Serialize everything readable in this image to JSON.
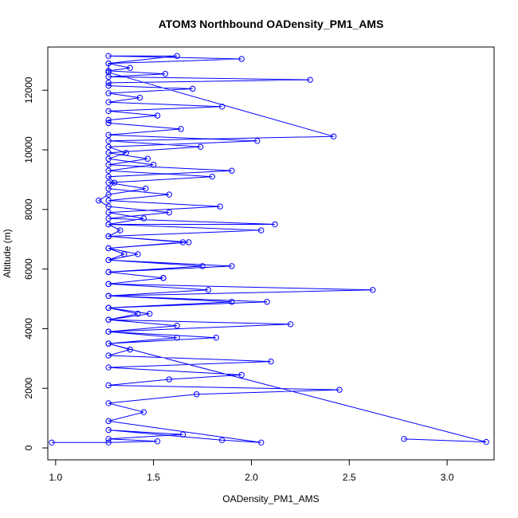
{
  "chart_data": {
    "type": "scatter",
    "title": "ATOM3 Northbound OADensity_PM1_AMS",
    "xlabel": "OADensity_PM1_AMS",
    "ylabel": "Altitude (m)",
    "xlim": [
      0.96,
      3.24
    ],
    "ylim": [
      -400,
      13450
    ],
    "xticks": [
      1.0,
      1.5,
      2.0,
      2.5,
      3.0
    ],
    "xtick_labels": [
      "1.0",
      "1.5",
      "2.0",
      "2.5",
      "3.0"
    ],
    "yticks": [
      0,
      2000,
      4000,
      6000,
      8000,
      10000,
      12000
    ],
    "ytick_labels": [
      "0",
      "2000",
      "4000",
      "6000",
      "8000",
      "10000",
      "12000"
    ],
    "grid": false,
    "marker": "open-circle",
    "line": true,
    "color": "#0000ff",
    "series": [
      {
        "x": [
          0.98,
          1.27,
          1.52,
          1.27,
          1.65,
          1.27,
          1.85,
          2.05,
          1.27,
          1.45,
          1.27,
          1.72,
          2.45,
          1.27,
          1.58,
          1.95,
          1.27,
          2.1,
          1.27,
          1.38,
          1.27,
          1.62,
          1.27,
          2.2,
          1.27,
          1.48,
          1.27,
          1.9,
          1.27,
          2.62,
          1.27,
          1.55,
          1.27,
          1.75,
          1.27,
          1.42,
          1.27,
          1.68,
          1.27,
          1.33,
          1.27,
          2.12,
          1.27,
          1.58,
          1.27,
          1.22,
          1.27,
          1.46,
          1.27,
          1.8,
          1.27,
          1.5,
          1.27,
          1.36,
          1.27,
          2.03,
          1.27,
          1.64,
          1.27,
          1.27,
          1.52,
          1.27,
          1.85,
          1.27,
          1.43,
          1.27,
          1.7,
          1.27,
          1.27,
          2.3,
          1.27,
          1.56,
          1.27,
          1.38,
          1.27,
          1.95,
          1.27,
          1.62,
          1.27,
          1.27,
          2.42,
          1.27,
          1.74,
          1.27,
          1.47,
          1.27,
          1.9,
          1.27,
          1.3,
          1.27,
          1.58,
          1.27,
          1.84,
          1.27,
          1.45,
          1.27,
          2.05,
          1.27,
          1.65,
          1.27,
          1.35,
          1.27,
          1.9,
          1.27,
          1.55,
          1.27,
          1.78,
          1.27,
          2.08,
          1.27,
          1.42,
          1.27,
          1.62,
          1.27,
          1.82,
          1.27,
          3.2,
          2.78
        ],
        "y": [
          180,
          180,
          220,
          300,
          450,
          600,
          260,
          180,
          900,
          1200,
          1500,
          1800,
          1950,
          2100,
          2300,
          2450,
          2700,
          2900,
          3100,
          3300,
          3500,
          3700,
          3900,
          4150,
          4300,
          4500,
          4700,
          4900,
          5100,
          5300,
          5500,
          5700,
          5900,
          6100,
          6300,
          6500,
          6700,
          6900,
          7100,
          7300,
          7500,
          7500,
          7700,
          7900,
          8100,
          8300,
          8500,
          8700,
          8900,
          9100,
          9300,
          9500,
          9700,
          9900,
          10100,
          10300,
          10500,
          10700,
          10900,
          11000,
          11150,
          11300,
          11450,
          11600,
          11750,
          11900,
          12050,
          12150,
          12250,
          12350,
          12450,
          12550,
          12650,
          12750,
          12900,
          13050,
          13150,
          13150,
          12900,
          12600,
          10450,
          10300,
          10100,
          9900,
          9700,
          9500,
          9300,
          9100,
          8900,
          8700,
          8500,
          8300,
          8100,
          7900,
          7700,
          7500,
          7300,
          7100,
          6900,
          6700,
          6500,
          6300,
          6100,
          5900,
          5700,
          5500,
          5300,
          5100,
          4900,
          4700,
          4500,
          4300,
          4100,
          3900,
          3700,
          3500,
          200,
          300
        ]
      }
    ]
  }
}
